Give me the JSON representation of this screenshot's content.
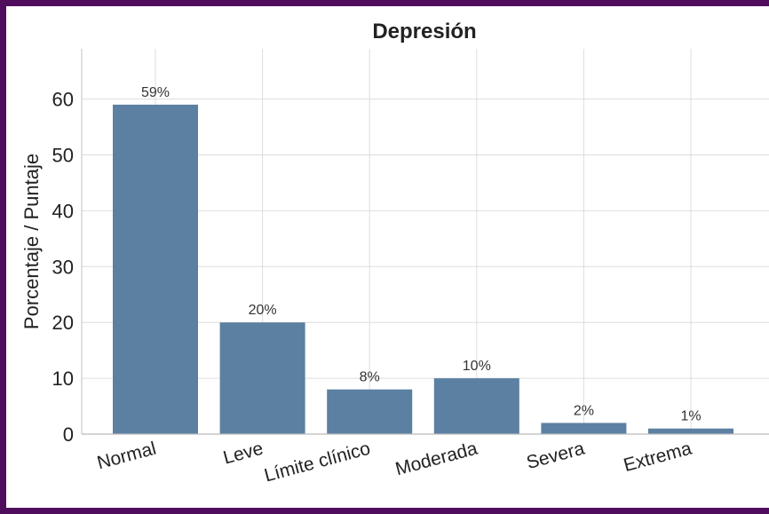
{
  "chart_data": {
    "type": "bar",
    "title": "Depresión",
    "ylabel": "Porcentaje / Puntaje",
    "xlabel": "",
    "categories": [
      "Normal",
      "Leve",
      "Límite clínico",
      "Moderada",
      "Severa",
      "Extrema"
    ],
    "values": [
      59,
      20,
      8,
      10,
      2,
      1
    ],
    "data_labels": [
      "59%",
      "20%",
      "8%",
      "10%",
      "2%",
      "1%"
    ],
    "ylim": [
      0,
      69
    ],
    "yticks": [
      0,
      10,
      20,
      30,
      40,
      50,
      60
    ],
    "grid": true,
    "bar_color": "#5b80a2",
    "border_color": "#500d5e"
  }
}
